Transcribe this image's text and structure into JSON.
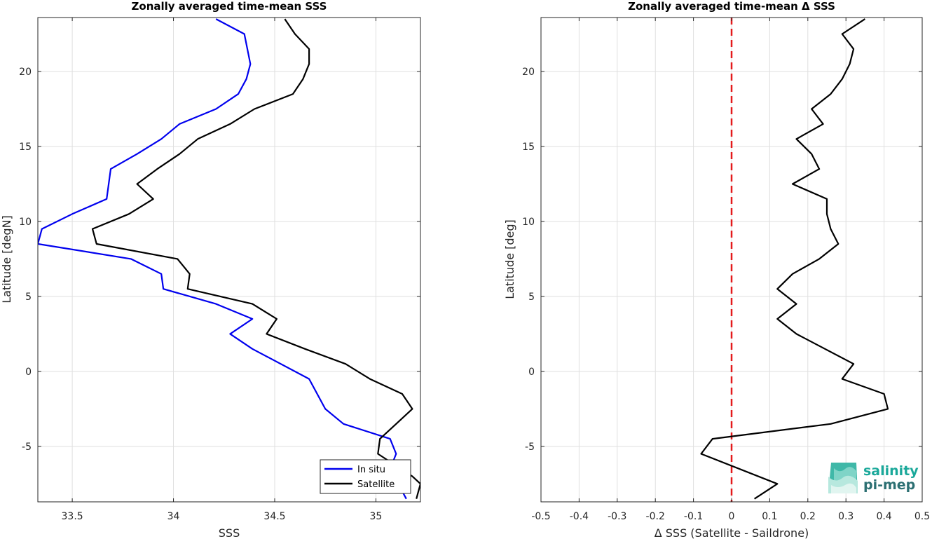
{
  "chart_data": [
    {
      "type": "line",
      "title": "Zonally averaged time-mean SSS",
      "xlabel": "SSS",
      "ylabel": "Latitude [degN]",
      "xlim": [
        33.33,
        35.22
      ],
      "ylim": [
        -8.7,
        23.6
      ],
      "xticks": [
        33.5,
        34,
        34.5,
        35
      ],
      "xtick_labels": [
        "33.5",
        "34",
        "34.5",
        "35"
      ],
      "yticks": [
        -5,
        0,
        5,
        10,
        15,
        20
      ],
      "ytick_labels": [
        "-5",
        "0",
        "5",
        "10",
        "15",
        "20"
      ],
      "grid": true,
      "legend_position": "bottom-right",
      "series": [
        {
          "name": "In situ",
          "color": "#0000ee",
          "x": [
            34.21,
            34.35,
            34.38,
            34.36,
            34.32,
            34.21,
            34.03,
            33.94,
            33.82,
            33.69,
            33.67,
            33.5,
            33.35,
            33.33,
            33.79,
            33.94,
            33.95,
            34.21,
            34.39,
            34.28,
            34.39,
            34.67,
            34.75,
            34.84,
            35.07,
            35.1,
            35.07,
            35.15
          ],
          "y": [
            23.5,
            22.5,
            20.5,
            19.5,
            18.5,
            17.5,
            16.5,
            15.5,
            14.5,
            13.5,
            11.5,
            10.5,
            9.5,
            8.5,
            7.5,
            6.5,
            5.5,
            4.5,
            3.5,
            2.5,
            1.5,
            -0.5,
            -2.5,
            -3.5,
            -4.5,
            -5.5,
            -6.5,
            -8.5
          ]
        },
        {
          "name": "Satellite",
          "color": "#000000",
          "x": [
            34.55,
            34.6,
            34.67,
            34.67,
            34.64,
            34.59,
            34.4,
            34.28,
            34.12,
            34.03,
            33.92,
            33.82,
            33.9,
            33.78,
            33.6,
            33.62,
            34.02,
            34.08,
            34.07,
            34.39,
            34.51,
            34.46,
            34.65,
            34.85,
            34.97,
            35.13,
            35.18,
            35.1,
            35.02,
            35.01,
            35.18,
            35.22,
            35.2
          ],
          "y": [
            23.5,
            22.5,
            21.5,
            20.5,
            19.5,
            18.5,
            17.5,
            16.5,
            15.5,
            14.5,
            13.5,
            12.5,
            11.5,
            10.5,
            9.5,
            8.5,
            7.5,
            6.5,
            5.5,
            4.5,
            3.5,
            2.5,
            1.5,
            0.5,
            -0.5,
            -1.5,
            -2.5,
            -3.5,
            -4.5,
            -5.5,
            -7,
            -7.5,
            -8.5
          ]
        }
      ]
    },
    {
      "type": "line",
      "title": "Zonally averaged time-mean Δ SSS",
      "xlabel": "Δ SSS (Satellite - Saildrone)",
      "ylabel": "Latitude [deg]",
      "xlim": [
        -0.5,
        0.5
      ],
      "ylim": [
        -8.7,
        23.6
      ],
      "xticks": [
        -0.5,
        -0.4,
        -0.3,
        -0.2,
        -0.1,
        0,
        0.1,
        0.2,
        0.3,
        0.4,
        0.5
      ],
      "xtick_labels": [
        "-0.5",
        "-0.4",
        "-0.3",
        "-0.2",
        "-0.1",
        "0",
        "0.1",
        "0.2",
        "0.3",
        "0.4",
        "0.5"
      ],
      "yticks": [
        -5,
        0,
        5,
        10,
        15,
        20
      ],
      "ytick_labels": [
        "-5",
        "0",
        "5",
        "10",
        "15",
        "20"
      ],
      "grid": true,
      "reference_line": {
        "x": 0,
        "color": "#e41a1c",
        "style": "dashed"
      },
      "series": [
        {
          "color": "#000000",
          "x": [
            0.35,
            0.29,
            0.32,
            0.31,
            0.29,
            0.26,
            0.21,
            0.24,
            0.17,
            0.21,
            0.23,
            0.16,
            0.25,
            0.25,
            0.26,
            0.28,
            0.23,
            0.16,
            0.12,
            0.17,
            0.12,
            0.17,
            0.32,
            0.29,
            0.4,
            0.41,
            0.26,
            -0.05,
            -0.08,
            0.12,
            0.06
          ],
          "y": [
            23.5,
            22.5,
            21.5,
            20.5,
            19.5,
            18.5,
            17.5,
            16.5,
            15.5,
            14.5,
            13.5,
            12.5,
            11.5,
            10.5,
            9.5,
            8.5,
            7.5,
            6.5,
            5.5,
            4.5,
            3.5,
            2.5,
            0.5,
            -0.5,
            -1.5,
            -2.5,
            -3.5,
            -4.5,
            -5.5,
            -7.5,
            -8.5
          ]
        }
      ]
    }
  ],
  "logo": {
    "text_line1": "salinity",
    "text_line2": "pi-mep",
    "color_line1": "#1aa89a",
    "color_line2": "#2b6f72"
  }
}
